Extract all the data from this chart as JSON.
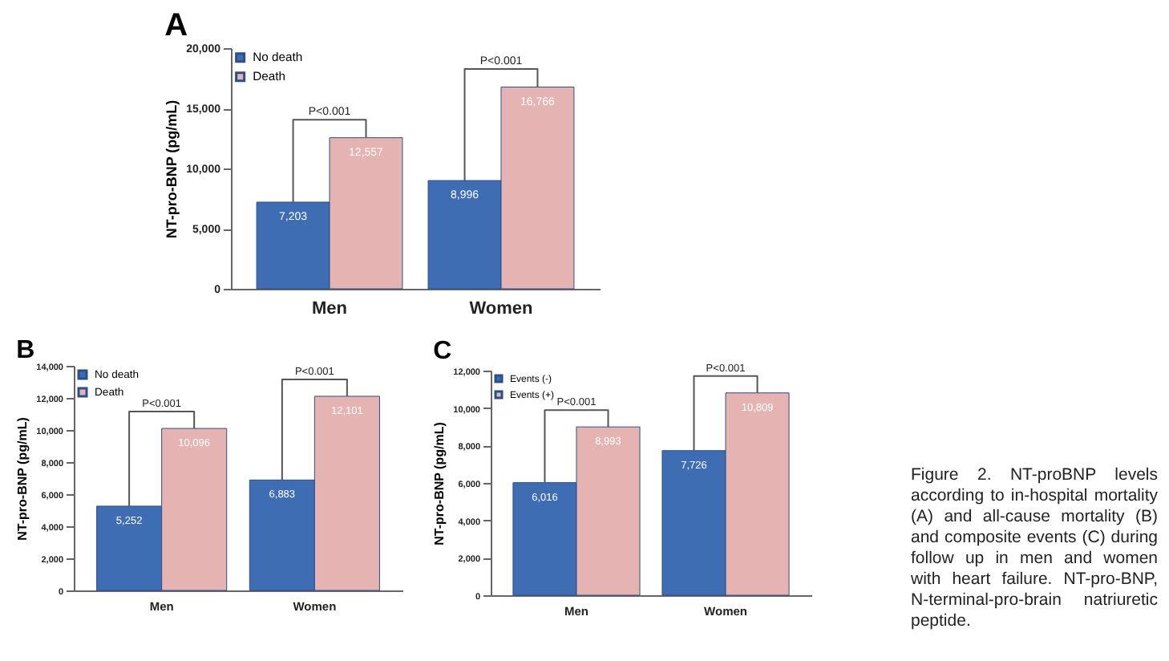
{
  "chart_data": [
    {
      "type": "bar",
      "title": "A",
      "ylabel": "NT-pro-BNP (pg/mL)",
      "categories": [
        "Men",
        "Women"
      ],
      "series": [
        {
          "name": "No death",
          "color": "#3e6db4",
          "values": [
            7203,
            8996
          ],
          "value_labels": [
            "7,203",
            "8,996"
          ]
        },
        {
          "name": "Death",
          "color": "#e6b3b3",
          "values": [
            12557,
            16766
          ],
          "value_labels": [
            "12,557",
            "16,766"
          ]
        }
      ],
      "ylim": [
        0,
        20000
      ],
      "yticks": [
        {
          "value": 0,
          "label": "0"
        },
        {
          "value": 5000,
          "label": "5,000"
        },
        {
          "value": 10000,
          "label": "10,000"
        },
        {
          "value": 15000,
          "label": "15,000"
        },
        {
          "value": 20000,
          "label": "20,000"
        }
      ],
      "legend": "top left",
      "annotations": [
        "P<0.001",
        "P<0.001"
      ]
    },
    {
      "type": "bar",
      "title": "B",
      "ylabel": "NT-pro-BNP (pg/mL)",
      "categories": [
        "Men",
        "Women"
      ],
      "series": [
        {
          "name": "No death",
          "color": "#3e6db4",
          "values": [
            5252,
            6883
          ],
          "value_labels": [
            "5,252",
            "6,883"
          ]
        },
        {
          "name": "Death",
          "color": "#e6b3b3",
          "values": [
            10096,
            12101
          ],
          "value_labels": [
            "10,096",
            "12,101"
          ]
        }
      ],
      "ylim": [
        0,
        14000
      ],
      "yticks": [
        {
          "value": 0,
          "label": "0"
        },
        {
          "value": 2000,
          "label": "2,000"
        },
        {
          "value": 4000,
          "label": "4,000"
        },
        {
          "value": 6000,
          "label": "6,000"
        },
        {
          "value": 8000,
          "label": "8,000"
        },
        {
          "value": 10000,
          "label": "10,000"
        },
        {
          "value": 12000,
          "label": "12,000"
        },
        {
          "value": 14000,
          "label": "14,000"
        }
      ],
      "legend": "top left",
      "annotations": [
        "P<0.001",
        "P<0.001"
      ]
    },
    {
      "type": "bar",
      "title": "C",
      "ylabel": "NT-pro-BNP (pg/mL)",
      "categories": [
        "Men",
        "Women"
      ],
      "series": [
        {
          "name": "Events (-)",
          "color": "#3e6db4",
          "values": [
            6016,
            7726
          ],
          "value_labels": [
            "6,016",
            "7,726"
          ]
        },
        {
          "name": "Events (+)",
          "color": "#e6b3b3",
          "values": [
            8993,
            10809
          ],
          "value_labels": [
            "8,993",
            "10,809"
          ]
        }
      ],
      "ylim": [
        0,
        12000
      ],
      "yticks": [
        {
          "value": 0,
          "label": "0"
        },
        {
          "value": 2000,
          "label": "2,000"
        },
        {
          "value": 4000,
          "label": "4,000"
        },
        {
          "value": 6000,
          "label": "6,000"
        },
        {
          "value": 8000,
          "label": "8,000"
        },
        {
          "value": 10000,
          "label": "10,000"
        },
        {
          "value": 12000,
          "label": "12,000"
        }
      ],
      "legend": "top left",
      "annotations": [
        "P<0.001",
        "P<0.001",
        "Figure 2.    NT-proBNP levels according to in-hospital mortality (A) and all-cause mortality (B) and composite events (C) during follow up in men and women with heart failure. NT-pro-BNP, N-terminal-pro-brain natriuretic peptide."
      ]
    }
  ]
}
